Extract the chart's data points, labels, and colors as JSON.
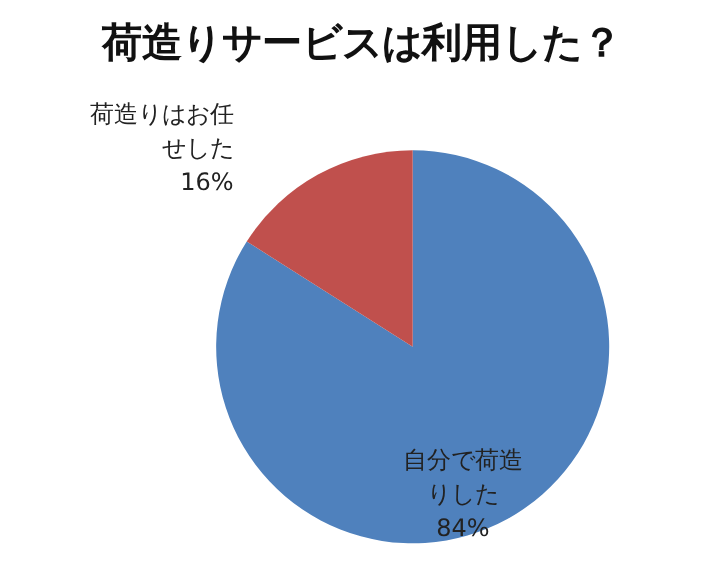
{
  "chart_data": {
    "type": "pie",
    "title": "荷造りサービスは利用した？",
    "categories": [
      "自分で荷造りした",
      "荷造りはお任せした"
    ],
    "values": [
      84,
      16
    ],
    "colors": [
      "#4f81bd",
      "#c0504d"
    ],
    "value_labels": [
      "84%",
      "16%"
    ],
    "legend": false
  }
}
